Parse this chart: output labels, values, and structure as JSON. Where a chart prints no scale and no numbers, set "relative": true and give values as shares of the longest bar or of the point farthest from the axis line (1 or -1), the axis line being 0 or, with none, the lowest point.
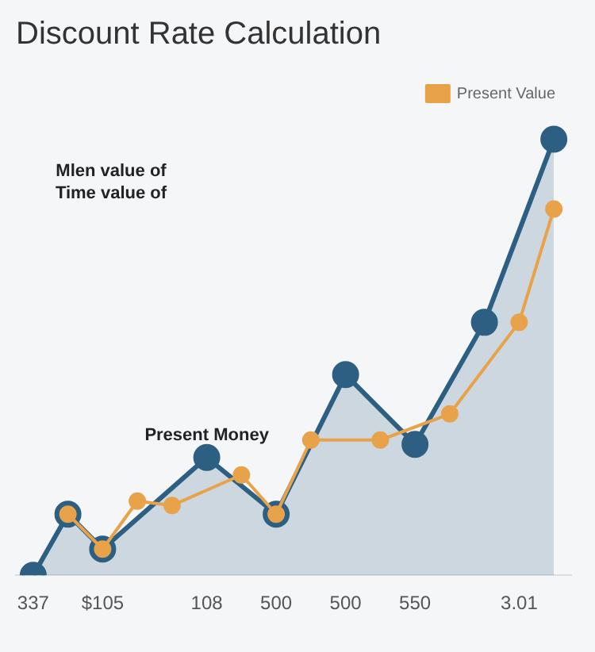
{
  "chart_data": {
    "type": "line",
    "title": "Discount Rate Calculation",
    "relative": true,
    "categories": [
      "337",
      null,
      "$105",
      null,
      null,
      "108",
      null,
      "500",
      null,
      "500",
      null,
      "550",
      null,
      null,
      "3.01",
      null
    ],
    "series": [
      {
        "type": "area",
        "color": "#2d5f82",
        "values": [
          0,
          0.14,
          0.06,
          null,
          null,
          0.27,
          null,
          0.14,
          null,
          0.46,
          null,
          0.3,
          null,
          0.58,
          null,
          1
        ]
      },
      {
        "type": "line",
        "name": "Present Value",
        "color": "#e8a24a",
        "values": [
          null,
          0.14,
          0.06,
          0.17,
          0.16,
          null,
          0.23,
          0.14,
          0.31,
          null,
          0.31,
          null,
          0.37,
          null,
          0.58,
          0.84
        ]
      }
    ],
    "annotations": [
      {
        "text": "Present Money",
        "x": "108",
        "y": 0.27
      },
      "Mlen value of",
      "Time value of"
    ],
    "marker": "circle",
    "legend": "top right",
    "grid": false
  }
}
